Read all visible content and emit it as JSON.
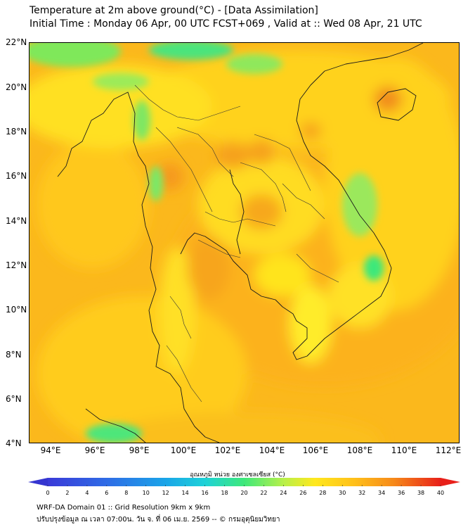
{
  "header": {
    "title_line1": "Temperature at 2m above ground(°C) - [Data Assimilation]",
    "title_line2": "Initial Time : Monday 06 Apr, 00 UTC FCST+069 , Valid at :: Wed 08 Apr, 21 UTC"
  },
  "map": {
    "lat_labels": [
      "22°N",
      "20°N",
      "18°N",
      "16°N",
      "14°N",
      "12°N",
      "10°N",
      "8°N",
      "6°N",
      "4°N"
    ],
    "lon_labels": [
      "94°E",
      "96°E",
      "98°E",
      "100°E",
      "102°E",
      "104°E",
      "106°E",
      "108°E",
      "110°E",
      "112°E"
    ],
    "lat_range": [
      4,
      22.3
    ],
    "lon_range": [
      93,
      112.5
    ],
    "variable": "2m temperature",
    "dominant_colors": {
      "cool": "#3ee87a",
      "mild": "#ffe21f",
      "warm": "#ffc400",
      "hot": "#f79e1e"
    }
  },
  "colorbar": {
    "title": "อุณหภูมิ หน่วย องศาเซลเซียส (°C)",
    "ticks": [
      "0",
      "2",
      "4",
      "6",
      "8",
      "10",
      "12",
      "14",
      "16",
      "18",
      "20",
      "22",
      "24",
      "26",
      "28",
      "30",
      "32",
      "34",
      "36",
      "38",
      "40"
    ],
    "min": 0,
    "max": 40,
    "extend": "both"
  },
  "footer": {
    "line1": "WRF-DA Domain 01 :: Grid Resolution 9km x 9km",
    "line2": "ปรับปรุงข้อมูล ณ เวลา 07:00น. วัน จ. ที่ 06 เม.ย. 2569 -- © กรมอุตุนิยมวิทยา"
  }
}
